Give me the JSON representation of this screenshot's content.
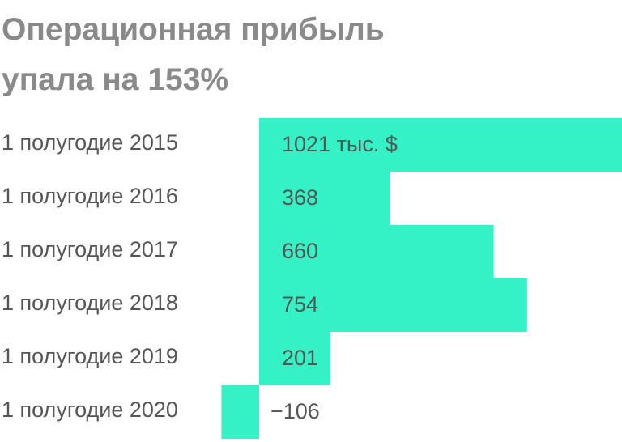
{
  "chart_data": {
    "type": "bar",
    "orientation": "horizontal",
    "title": "Операционная прибыль упала на 153%",
    "categories": [
      "1 полугодие 2015",
      "1 полугодие 2016",
      "1 полугодие 2017",
      "1 полугодие 2018",
      "1 полугодие 2019",
      "1 полугодие 2020"
    ],
    "values": [
      1021,
      368,
      660,
      754,
      201,
      -106
    ],
    "value_labels": [
      "1021 тыс. $",
      "368",
      "660",
      "754",
      "201",
      "−106"
    ],
    "color": "#34f2c6"
  }
}
